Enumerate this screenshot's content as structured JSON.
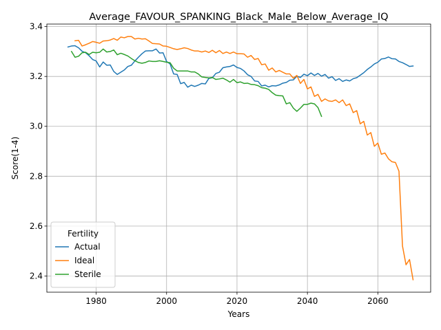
{
  "chart_data": {
    "type": "line",
    "title": "Average_FAVOUR_SPANKING_Black_Male_Below_Average_IQ",
    "xlabel": "Years",
    "ylabel": "Score(1-4)",
    "xlim": [
      1966,
      2075
    ],
    "ylim": [
      2.335,
      3.41
    ],
    "xticks": [
      1980,
      2000,
      2020,
      2040,
      2060
    ],
    "yticks": [
      2.4,
      2.6,
      2.8,
      3.0,
      3.2,
      3.4
    ],
    "ytick_labels": [
      "2.4",
      "2.6",
      "2.8",
      "3.0",
      "3.2",
      "3.4"
    ],
    "grid": true,
    "legend": {
      "title": "Fertility",
      "placement": "lower-left"
    },
    "series": [
      {
        "name": "Actual",
        "color": "#1f77b4",
        "x": [
          1972,
          1973,
          1974,
          1975,
          1976,
          1977,
          1978,
          1979,
          1980,
          1981,
          1982,
          1983,
          1984,
          1985,
          1986,
          1987,
          1988,
          1989,
          1990,
          1991,
          1992,
          1993,
          1994,
          1995,
          1996,
          1997,
          1998,
          1999,
          2000,
          2001,
          2002,
          2003,
          2004,
          2005,
          2006,
          2007,
          2008,
          2009,
          2010,
          2011,
          2012,
          2013,
          2014,
          2015,
          2016,
          2017,
          2018,
          2019,
          2020,
          2021,
          2022,
          2023,
          2024,
          2025,
          2026,
          2027,
          2028,
          2029,
          2030,
          2031,
          2032,
          2033,
          2034,
          2035,
          2036,
          2037,
          2038,
          2039,
          2040,
          2041,
          2042,
          2043,
          2044,
          2045,
          2046,
          2047,
          2048,
          2049,
          2050,
          2051,
          2052,
          2053,
          2054,
          2055,
          2056,
          2057,
          2058,
          2059,
          2060,
          2061,
          2062,
          2063,
          2064,
          2065,
          2066,
          2067,
          2068,
          2069,
          2070
        ],
        "values": [
          3.318,
          3.322,
          3.323,
          3.315,
          3.301,
          3.295,
          3.283,
          3.268,
          3.262,
          3.238,
          3.258,
          3.245,
          3.246,
          3.22,
          3.208,
          3.217,
          3.226,
          3.24,
          3.245,
          3.262,
          3.277,
          3.291,
          3.302,
          3.303,
          3.303,
          3.31,
          3.294,
          3.295,
          3.26,
          3.25,
          3.21,
          3.208,
          3.171,
          3.176,
          3.157,
          3.165,
          3.16,
          3.165,
          3.172,
          3.17,
          3.192,
          3.195,
          3.212,
          3.217,
          3.235,
          3.238,
          3.24,
          3.246,
          3.236,
          3.232,
          3.222,
          3.207,
          3.2,
          3.182,
          3.18,
          3.162,
          3.165,
          3.158,
          3.163,
          3.162,
          3.166,
          3.173,
          3.176,
          3.185,
          3.186,
          3.201,
          3.196,
          3.209,
          3.203,
          3.214,
          3.204,
          3.212,
          3.201,
          3.208,
          3.193,
          3.199,
          3.184,
          3.191,
          3.18,
          3.186,
          3.182,
          3.191,
          3.195,
          3.205,
          3.215,
          3.228,
          3.238,
          3.25,
          3.257,
          3.27,
          3.272,
          3.278,
          3.271,
          3.27,
          3.26,
          3.255,
          3.248,
          3.24,
          3.242
        ]
      },
      {
        "name": "Ideal",
        "color": "#ff7f0e",
        "x": [
          1974,
          1975,
          1976,
          1977,
          1978,
          1979,
          1980,
          1981,
          1982,
          1983,
          1984,
          1985,
          1986,
          1987,
          1988,
          1989,
          1990,
          1991,
          1992,
          1993,
          1994,
          1995,
          1996,
          1997,
          1998,
          1999,
          2000,
          2001,
          2002,
          2003,
          2004,
          2005,
          2006,
          2007,
          2008,
          2009,
          2010,
          2011,
          2012,
          2013,
          2014,
          2015,
          2016,
          2017,
          2018,
          2019,
          2020,
          2021,
          2022,
          2023,
          2024,
          2025,
          2026,
          2027,
          2028,
          2029,
          2030,
          2031,
          2032,
          2033,
          2034,
          2035,
          2036,
          2037,
          2038,
          2039,
          2040,
          2041,
          2042,
          2043,
          2044,
          2045,
          2046,
          2047,
          2048,
          2049,
          2050,
          2051,
          2052,
          2053,
          2054,
          2055,
          2056,
          2057,
          2058,
          2059,
          2060,
          2061,
          2062,
          2063,
          2064,
          2065,
          2066,
          2067,
          2068,
          2069,
          2070
        ],
        "values": [
          3.343,
          3.345,
          3.322,
          3.327,
          3.333,
          3.34,
          3.337,
          3.333,
          3.342,
          3.343,
          3.346,
          3.352,
          3.345,
          3.358,
          3.355,
          3.36,
          3.36,
          3.35,
          3.353,
          3.35,
          3.351,
          3.342,
          3.332,
          3.331,
          3.33,
          3.322,
          3.321,
          3.316,
          3.311,
          3.308,
          3.311,
          3.315,
          3.312,
          3.306,
          3.302,
          3.302,
          3.298,
          3.302,
          3.296,
          3.305,
          3.295,
          3.304,
          3.292,
          3.298,
          3.292,
          3.298,
          3.291,
          3.291,
          3.29,
          3.277,
          3.284,
          3.268,
          3.272,
          3.247,
          3.25,
          3.225,
          3.234,
          3.218,
          3.224,
          3.217,
          3.21,
          3.21,
          3.193,
          3.204,
          3.172,
          3.188,
          3.15,
          3.158,
          3.12,
          3.128,
          3.1,
          3.11,
          3.102,
          3.1,
          3.106,
          3.095,
          3.106,
          3.083,
          3.09,
          3.055,
          3.063,
          3.01,
          3.02,
          2.965,
          2.975,
          2.92,
          2.933,
          2.888,
          2.893,
          2.87,
          2.858,
          2.855,
          2.82,
          2.52,
          2.445,
          2.466,
          2.385
        ]
      },
      {
        "name": "Sterile",
        "color": "#2ca02c",
        "x": [
          1973,
          1974,
          1975,
          1976,
          1977,
          1978,
          1979,
          1980,
          1981,
          1982,
          1983,
          1984,
          1985,
          1986,
          1987,
          1988,
          1989,
          1990,
          1991,
          1992,
          1993,
          1994,
          1995,
          1996,
          1997,
          1998,
          1999,
          2000,
          2001,
          2002,
          2003,
          2004,
          2005,
          2006,
          2007,
          2008,
          2009,
          2010,
          2011,
          2012,
          2013,
          2014,
          2015,
          2016,
          2017,
          2018,
          2019,
          2020,
          2021,
          2022,
          2023,
          2024,
          2025,
          2026,
          2027,
          2028,
          2029,
          2030,
          2031,
          2032,
          2033,
          2034,
          2035,
          2036,
          2037,
          2038,
          2039,
          2040,
          2041,
          2042,
          2043,
          2044
        ],
        "values": [
          3.3,
          3.277,
          3.281,
          3.295,
          3.297,
          3.288,
          3.297,
          3.295,
          3.297,
          3.31,
          3.298,
          3.3,
          3.306,
          3.287,
          3.293,
          3.288,
          3.282,
          3.272,
          3.263,
          3.256,
          3.253,
          3.256,
          3.262,
          3.26,
          3.26,
          3.263,
          3.26,
          3.257,
          3.255,
          3.233,
          3.222,
          3.222,
          3.222,
          3.222,
          3.218,
          3.218,
          3.21,
          3.198,
          3.196,
          3.194,
          3.196,
          3.188,
          3.19,
          3.193,
          3.186,
          3.177,
          3.188,
          3.175,
          3.178,
          3.172,
          3.173,
          3.168,
          3.167,
          3.163,
          3.155,
          3.153,
          3.148,
          3.135,
          3.125,
          3.123,
          3.122,
          3.09,
          3.095,
          3.073,
          3.06,
          3.073,
          3.088,
          3.088,
          3.093,
          3.09,
          3.075,
          3.04
        ]
      }
    ]
  }
}
